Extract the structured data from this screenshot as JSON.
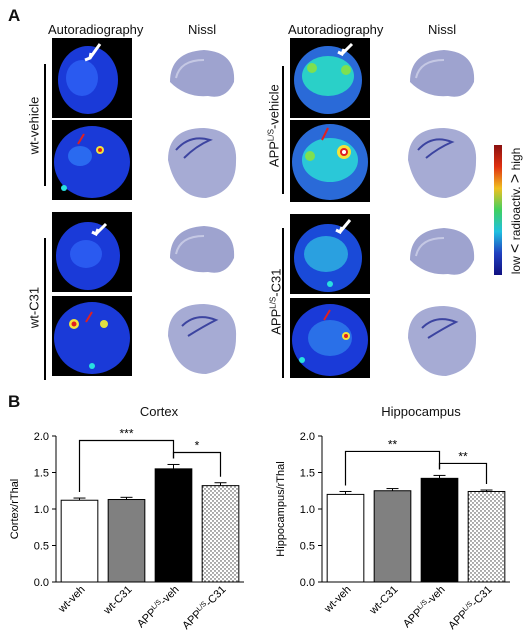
{
  "panel_a": {
    "letter": "A",
    "col_autoradiography": "Autoradiography",
    "col_nissl": "Nissl",
    "groups": [
      {
        "label": "wt-vehicle"
      },
      {
        "label_prefix": "APP",
        "label_sup": "L/S",
        "label_suffix": "-vehicle"
      },
      {
        "label": "wt-C31"
      },
      {
        "label_prefix": "APP",
        "label_sup": "L/S",
        "label_suffix": "-C31"
      }
    ],
    "colorbar": {
      "low": "low",
      "middle": "radioactiv.",
      "high": "high"
    }
  },
  "panel_b": {
    "letter": "B"
  },
  "colors": {
    "wt_veh": "#ffffff",
    "wt_c31": "#808080",
    "app_veh": "#000000",
    "app_c31": "#ffffff",
    "scan_bg": "#000000",
    "scan_blue": "#1a3ad8",
    "nissl": "#9ea3cf"
  },
  "chart_data": [
    {
      "type": "bar",
      "title": "Cortex",
      "ylabel": "Cortex/rThal",
      "ylim": [
        0,
        2.0
      ],
      "yticks": [
        "0.0",
        "0.5",
        "1.0",
        "1.5",
        "2.0"
      ],
      "categories": [
        "wt-veh",
        "wt-C31",
        "APPL/S-veh",
        "APPL/S-C31"
      ],
      "tick_labels": [
        {
          "pre": "wt-veh",
          "sup": "",
          "post": ""
        },
        {
          "pre": "wt-C31",
          "sup": "",
          "post": ""
        },
        {
          "pre": "APP",
          "sup": "L/S",
          "post": "-veh"
        },
        {
          "pre": "APP",
          "sup": "L/S",
          "post": "-C31"
        }
      ],
      "values": [
        1.12,
        1.13,
        1.55,
        1.32
      ],
      "errors": [
        0.03,
        0.03,
        0.06,
        0.04
      ],
      "significance": [
        {
          "from": 0,
          "to": 2,
          "label": "***"
        },
        {
          "from": 2,
          "to": 3,
          "label": "*"
        }
      ]
    },
    {
      "type": "bar",
      "title": "Hippocampus",
      "ylabel": "Hippocampus/rThal",
      "ylim": [
        0,
        2.0
      ],
      "yticks": [
        "0.0",
        "0.5",
        "1.0",
        "1.5",
        "2.0"
      ],
      "categories": [
        "wt-veh",
        "wt-C31",
        "APPL/S-veh",
        "APPL/S-C31"
      ],
      "tick_labels": [
        {
          "pre": "wt-veh",
          "sup": "",
          "post": ""
        },
        {
          "pre": "wt-C31",
          "sup": "",
          "post": ""
        },
        {
          "pre": "APP",
          "sup": "L/S",
          "post": "-veh"
        },
        {
          "pre": "APP",
          "sup": "L/S",
          "post": "-C31"
        }
      ],
      "values": [
        1.2,
        1.25,
        1.42,
        1.24
      ],
      "errors": [
        0.04,
        0.03,
        0.04,
        0.02
      ],
      "significance": [
        {
          "from": 0,
          "to": 2,
          "label": "**"
        },
        {
          "from": 2,
          "to": 3,
          "label": "**"
        }
      ]
    }
  ]
}
